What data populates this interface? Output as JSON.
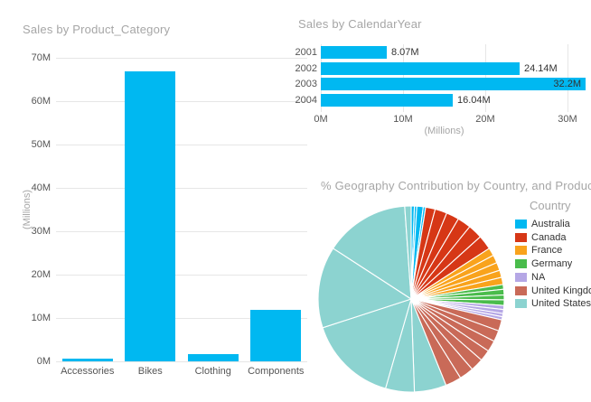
{
  "colors": {
    "accent": "#00B8F1",
    "title_gray": "#A6A6A6",
    "axis_text": "#555555",
    "data_label": "#333333",
    "grid": "#E6E6E6"
  },
  "chart_data": [
    {
      "type": "bar",
      "orientation": "vertical",
      "title": "Sales by Product_Category",
      "categories": [
        "Accessories",
        "Bikes",
        "Clothing",
        "Components"
      ],
      "values": [
        0.6,
        66.9,
        1.7,
        11.9
      ],
      "unit": "M",
      "ylabel": "(Millions)",
      "ylim": [
        0,
        70
      ],
      "yticks": [
        "70M",
        "60M",
        "50M",
        "40M",
        "30M",
        "20M",
        "10M",
        "0M"
      ],
      "grid": "on",
      "bar_color": "#00B8F1"
    },
    {
      "type": "bar",
      "orientation": "horizontal",
      "title": "Sales by CalendarYear",
      "categories": [
        "2001",
        "2002",
        "2003",
        "2004"
      ],
      "values": [
        8.07,
        24.14,
        32.2,
        16.04
      ],
      "value_labels": [
        "8.07M",
        "24.14M",
        "32.2M",
        "16.04M"
      ],
      "unit": "M",
      "xlabel": "(Millions)",
      "xlim": [
        0,
        32.2
      ],
      "xticks": [
        "0M",
        "10M",
        "20M",
        "30M"
      ],
      "grid": "on",
      "bar_color": "#00B8F1"
    },
    {
      "type": "pie",
      "title": "% Geography Contribution by Country, and Product_Category",
      "legend_title": "Country",
      "legend_position": "right",
      "segments": [
        {
          "label": "Australia",
          "color": "#00B8F1",
          "share_pct": 2.5,
          "sub_slices_deg": [
            2,
            1.5,
            4,
            1.5
          ]
        },
        {
          "label": "Canada",
          "color": "#D63716",
          "share_pct": 13.3,
          "sub_slices_deg": [
            6,
            7.5,
            8,
            8.5,
            9,
            9
          ]
        },
        {
          "label": "France",
          "color": "#F9A31C",
          "share_pct": 6.7,
          "sub_slices_deg": [
            5,
            5,
            5,
            4.5,
            4.5
          ]
        },
        {
          "label": "Germany",
          "color": "#4ABC4C",
          "share_pct": 3.6,
          "sub_slices_deg": [
            3,
            3.5,
            3,
            3.5
          ]
        },
        {
          "label": "NA",
          "color": "#B5A7E5",
          "share_pct": 2.5,
          "sub_slices_deg": [
            2.5,
            2.5,
            2,
            2
          ]
        },
        {
          "label": "United Kingdom",
          "color": "#C96A58",
          "share_pct": 15.3,
          "sub_slices_deg": [
            7,
            7,
            7,
            7,
            8,
            9,
            10
          ]
        },
        {
          "label": "United States",
          "color": "#8CD3D0",
          "share_pct": 56.1,
          "sub_slices_deg": [
            20,
            18,
            56,
            51,
            53,
            4
          ]
        }
      ]
    }
  ]
}
